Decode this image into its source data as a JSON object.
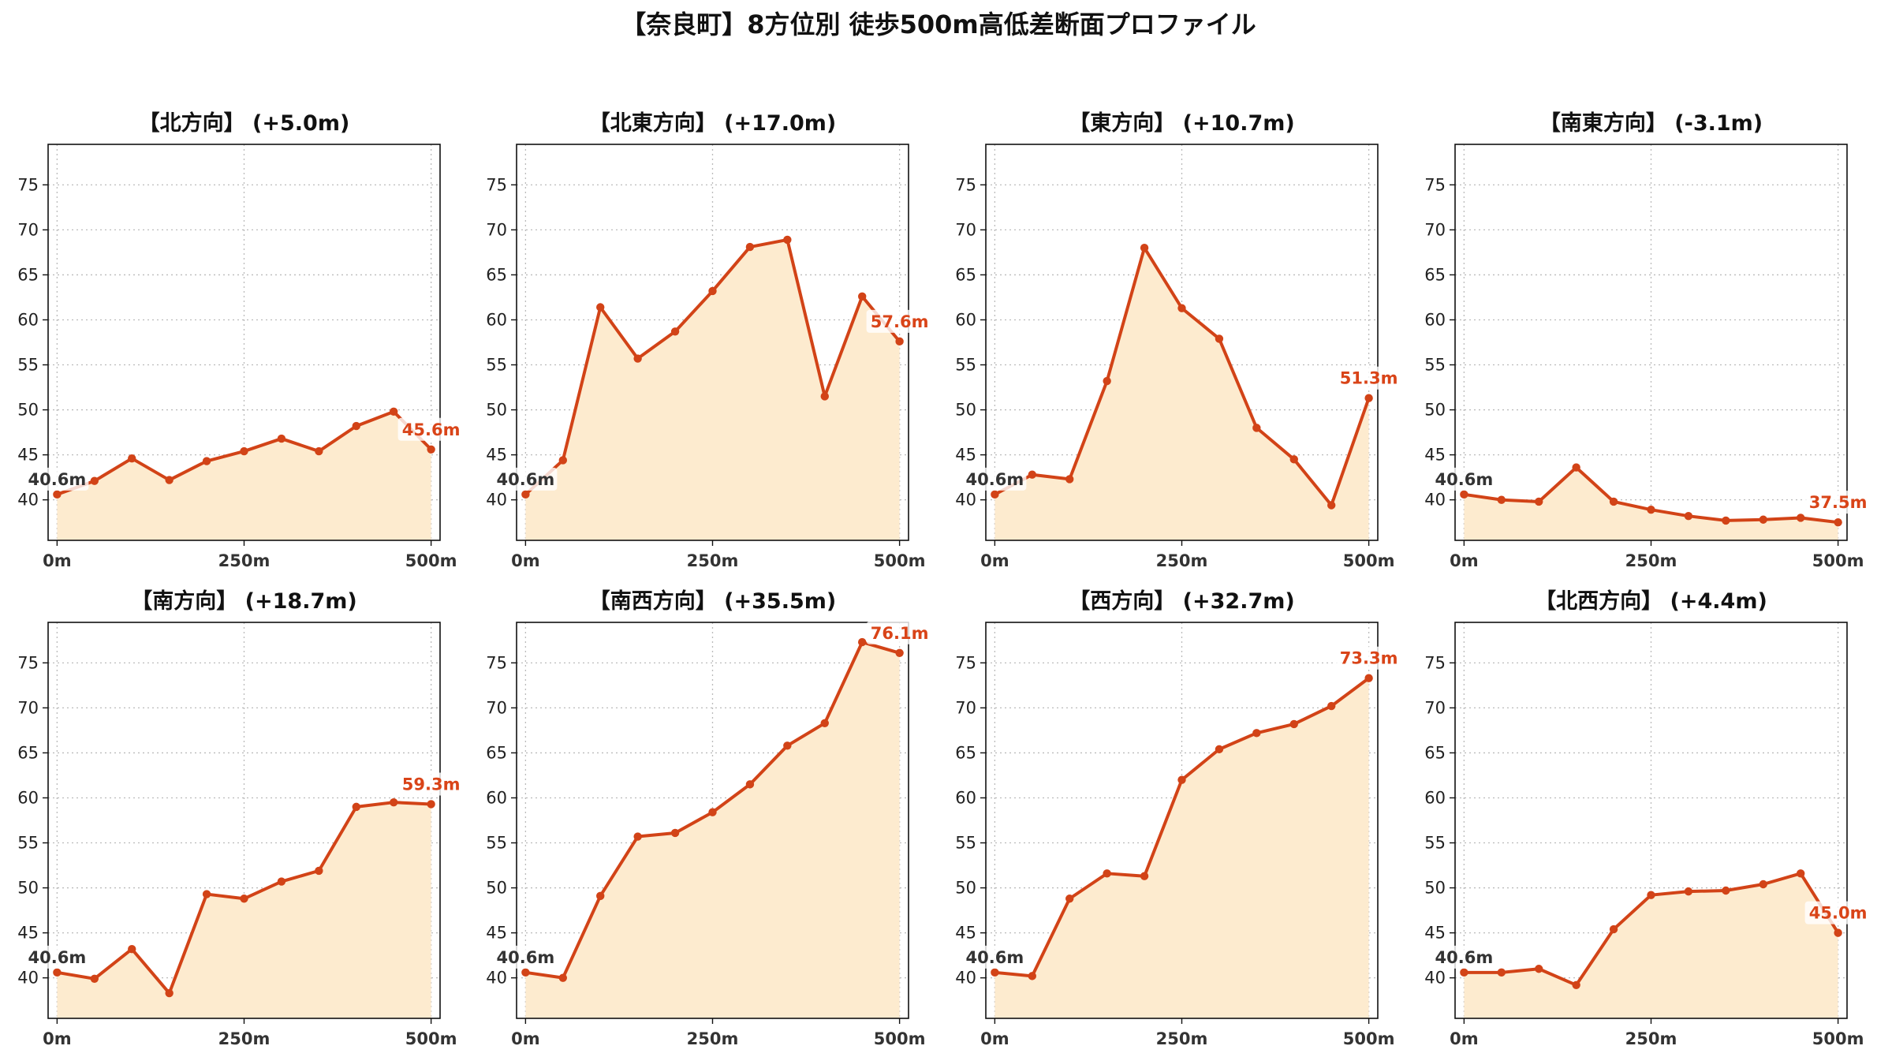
{
  "figure_title": "【奈良町】8方位別 徒歩500m高低差断面プロファイル",
  "colors": {
    "line": "#d24317",
    "fill": "#fdebcf",
    "grid": "#bbbbbb",
    "end_label": "#d94418",
    "start_label": "#333333"
  },
  "chart_data": [
    {
      "type": "area",
      "title": "【北方向】 (+5.0m)",
      "x": [
        0,
        50,
        100,
        150,
        200,
        250,
        300,
        350,
        400,
        450,
        500
      ],
      "y": [
        40.6,
        42.1,
        44.6,
        42.2,
        44.3,
        45.4,
        46.8,
        45.4,
        48.2,
        49.8,
        45.6
      ],
      "start_label": "40.6m",
      "end_label": "45.6m",
      "xticks": [
        "0m",
        "250m",
        "500m"
      ],
      "yticks": [
        40,
        45,
        50,
        55,
        60,
        65,
        70,
        75
      ],
      "xlim": [
        -12,
        512
      ],
      "ylim": [
        35.5,
        79.5
      ],
      "grid": true
    },
    {
      "type": "area",
      "title": "【北東方向】 (+17.0m)",
      "x": [
        0,
        50,
        100,
        150,
        200,
        250,
        300,
        350,
        400,
        450,
        500
      ],
      "y": [
        40.6,
        44.4,
        61.4,
        55.7,
        58.7,
        63.2,
        68.1,
        68.9,
        51.5,
        62.6,
        57.6
      ],
      "start_label": "40.6m",
      "end_label": "57.6m",
      "xticks": [
        "0m",
        "250m",
        "500m"
      ],
      "yticks": [
        40,
        45,
        50,
        55,
        60,
        65,
        70,
        75
      ],
      "xlim": [
        -12,
        512
      ],
      "ylim": [
        35.5,
        79.5
      ],
      "grid": true
    },
    {
      "type": "area",
      "title": "【東方向】 (+10.7m)",
      "x": [
        0,
        50,
        100,
        150,
        200,
        250,
        300,
        350,
        400,
        450,
        500
      ],
      "y": [
        40.6,
        42.8,
        42.3,
        53.2,
        68.0,
        61.3,
        57.9,
        48.0,
        44.5,
        39.4,
        51.3
      ],
      "start_label": "40.6m",
      "end_label": "51.3m",
      "xticks": [
        "0m",
        "250m",
        "500m"
      ],
      "yticks": [
        40,
        45,
        50,
        55,
        60,
        65,
        70,
        75
      ],
      "xlim": [
        -12,
        512
      ],
      "ylim": [
        35.5,
        79.5
      ],
      "grid": true
    },
    {
      "type": "area",
      "title": "【南東方向】 (-3.1m)",
      "x": [
        0,
        50,
        100,
        150,
        200,
        250,
        300,
        350,
        400,
        450,
        500
      ],
      "y": [
        40.6,
        40.0,
        39.8,
        43.6,
        39.8,
        38.9,
        38.2,
        37.7,
        37.8,
        38.0,
        37.5
      ],
      "start_label": "40.6m",
      "end_label": "37.5m",
      "xticks": [
        "0m",
        "250m",
        "500m"
      ],
      "yticks": [
        40,
        45,
        50,
        55,
        60,
        65,
        70,
        75
      ],
      "xlim": [
        -12,
        512
      ],
      "ylim": [
        35.5,
        79.5
      ],
      "grid": true
    },
    {
      "type": "area",
      "title": "【南方向】 (+18.7m)",
      "x": [
        0,
        50,
        100,
        150,
        200,
        250,
        300,
        350,
        400,
        450,
        500
      ],
      "y": [
        40.6,
        39.9,
        43.2,
        38.3,
        49.3,
        48.8,
        50.7,
        51.9,
        59.0,
        59.5,
        59.3
      ],
      "start_label": "40.6m",
      "end_label": "59.3m",
      "xticks": [
        "0m",
        "250m",
        "500m"
      ],
      "yticks": [
        40,
        45,
        50,
        55,
        60,
        65,
        70,
        75
      ],
      "xlim": [
        -12,
        512
      ],
      "ylim": [
        35.5,
        79.5
      ],
      "grid": true
    },
    {
      "type": "area",
      "title": "【南西方向】 (+35.5m)",
      "x": [
        0,
        50,
        100,
        150,
        200,
        250,
        300,
        350,
        400,
        450,
        500
      ],
      "y": [
        40.6,
        40.0,
        49.1,
        55.7,
        56.1,
        58.4,
        61.5,
        65.8,
        68.3,
        77.3,
        76.1
      ],
      "start_label": "40.6m",
      "end_label": "76.1m",
      "xticks": [
        "0m",
        "250m",
        "500m"
      ],
      "yticks": [
        40,
        45,
        50,
        55,
        60,
        65,
        70,
        75
      ],
      "xlim": [
        -12,
        512
      ],
      "ylim": [
        35.5,
        79.5
      ],
      "grid": true
    },
    {
      "type": "area",
      "title": "【西方向】 (+32.7m)",
      "x": [
        0,
        50,
        100,
        150,
        200,
        250,
        300,
        350,
        400,
        450,
        500
      ],
      "y": [
        40.6,
        40.2,
        48.8,
        51.6,
        51.3,
        62.0,
        65.4,
        67.2,
        68.2,
        70.2,
        73.3
      ],
      "start_label": "40.6m",
      "end_label": "73.3m",
      "xticks": [
        "0m",
        "250m",
        "500m"
      ],
      "yticks": [
        40,
        45,
        50,
        55,
        60,
        65,
        70,
        75
      ],
      "xlim": [
        -12,
        512
      ],
      "ylim": [
        35.5,
        79.5
      ],
      "grid": true
    },
    {
      "type": "area",
      "title": "【北西方向】 (+4.4m)",
      "x": [
        0,
        50,
        100,
        150,
        200,
        250,
        300,
        350,
        400,
        450,
        500
      ],
      "y": [
        40.6,
        40.6,
        41.0,
        39.2,
        45.4,
        49.2,
        49.6,
        49.7,
        50.4,
        51.6,
        45.0
      ],
      "start_label": "40.6m",
      "end_label": "45.0m",
      "xticks": [
        "0m",
        "250m",
        "500m"
      ],
      "yticks": [
        40,
        45,
        50,
        55,
        60,
        65,
        70,
        75
      ],
      "xlim": [
        -12,
        512
      ],
      "ylim": [
        35.5,
        79.5
      ],
      "grid": true
    }
  ]
}
